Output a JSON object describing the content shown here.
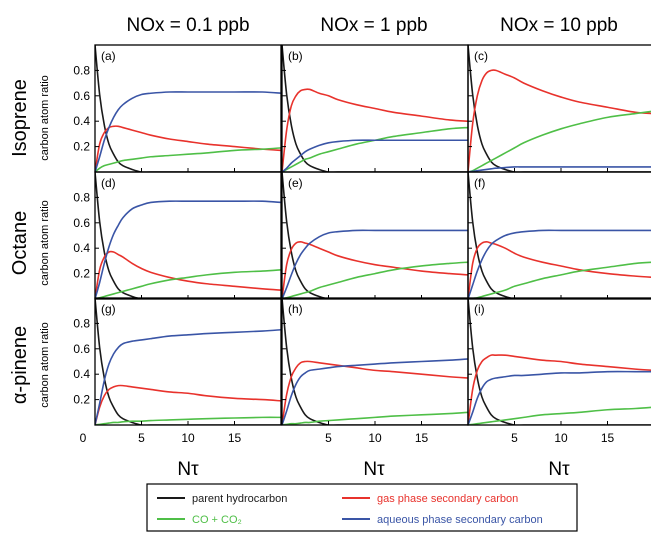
{
  "chart_data": {
    "type": "line",
    "column_titles": [
      "NOx = 0.1 ppb",
      "NOx = 1 ppb",
      "NOx = 10 ppb"
    ],
    "row_titles": [
      "Isoprene",
      "Octane",
      "α-pinene"
    ],
    "ylabel": "carbon atom ratio",
    "xlabel": "Nτ",
    "xlim": [
      0,
      20
    ],
    "ylim": [
      0,
      1
    ],
    "xticks": [
      "0",
      "5",
      "10",
      "15"
    ],
    "yticks": [
      "0.2",
      "0.4",
      "0.6",
      "0.8"
    ],
    "x": [
      0,
      0.5,
      1,
      1.5,
      2,
      2.5,
      3,
      4,
      5,
      6,
      8,
      10,
      12,
      15,
      18,
      20
    ],
    "series_styles": [
      {
        "name": "parent hydrocarbon",
        "color": "#1a1a1a"
      },
      {
        "name": "gas phase secondary carbon",
        "color": "#e8322c"
      },
      {
        "name": "CO + CO₂",
        "color": "#4fbf47"
      },
      {
        "name": "aqueous phase secondary carbon",
        "color": "#3a55a6"
      }
    ],
    "panels": [
      {
        "label": "(a)",
        "row": 0,
        "col": 0,
        "series": [
          [
            1.0,
            0.61,
            0.37,
            0.22,
            0.14,
            0.08,
            0.05,
            0.02,
            0.0,
            0.0,
            0.0,
            0.0,
            0.0,
            0.0,
            0.0,
            0.0
          ],
          [
            0.0,
            0.22,
            0.31,
            0.35,
            0.36,
            0.36,
            0.35,
            0.33,
            0.31,
            0.29,
            0.26,
            0.24,
            0.22,
            0.2,
            0.18,
            0.17
          ],
          [
            0.0,
            0.03,
            0.05,
            0.06,
            0.07,
            0.08,
            0.09,
            0.1,
            0.11,
            0.12,
            0.13,
            0.14,
            0.15,
            0.17,
            0.18,
            0.19
          ],
          [
            0.0,
            0.12,
            0.25,
            0.35,
            0.43,
            0.49,
            0.53,
            0.58,
            0.61,
            0.62,
            0.63,
            0.63,
            0.63,
            0.63,
            0.63,
            0.62
          ]
        ]
      },
      {
        "label": "(b)",
        "row": 0,
        "col": 1,
        "series": [
          [
            1.0,
            0.61,
            0.37,
            0.22,
            0.14,
            0.08,
            0.05,
            0.02,
            0.0,
            0.0,
            0.0,
            0.0,
            0.0,
            0.0,
            0.0,
            0.0
          ],
          [
            0.0,
            0.33,
            0.52,
            0.6,
            0.64,
            0.65,
            0.65,
            0.62,
            0.6,
            0.57,
            0.53,
            0.5,
            0.47,
            0.44,
            0.41,
            0.4
          ],
          [
            0.0,
            0.02,
            0.04,
            0.06,
            0.08,
            0.1,
            0.11,
            0.14,
            0.16,
            0.18,
            0.22,
            0.25,
            0.28,
            0.31,
            0.34,
            0.35
          ],
          [
            0.0,
            0.03,
            0.07,
            0.1,
            0.13,
            0.16,
            0.18,
            0.21,
            0.23,
            0.24,
            0.25,
            0.25,
            0.25,
            0.25,
            0.25,
            0.25
          ]
        ]
      },
      {
        "label": "(c)",
        "row": 0,
        "col": 2,
        "series": [
          [
            1.0,
            0.61,
            0.37,
            0.22,
            0.14,
            0.08,
            0.05,
            0.02,
            0.0,
            0.0,
            0.0,
            0.0,
            0.0,
            0.0,
            0.0,
            0.0
          ],
          [
            0.0,
            0.38,
            0.6,
            0.72,
            0.78,
            0.8,
            0.8,
            0.77,
            0.74,
            0.7,
            0.64,
            0.59,
            0.55,
            0.51,
            0.47,
            0.46
          ],
          [
            0.0,
            0.01,
            0.03,
            0.05,
            0.07,
            0.09,
            0.11,
            0.15,
            0.19,
            0.23,
            0.29,
            0.34,
            0.38,
            0.43,
            0.46,
            0.48
          ],
          [
            0.0,
            0.005,
            0.01,
            0.015,
            0.02,
            0.025,
            0.03,
            0.035,
            0.04,
            0.04,
            0.04,
            0.04,
            0.04,
            0.04,
            0.04,
            0.04
          ]
        ]
      },
      {
        "label": "(d)",
        "row": 1,
        "col": 0,
        "series": [
          [
            1.0,
            0.61,
            0.37,
            0.22,
            0.14,
            0.08,
            0.05,
            0.02,
            0.0,
            0.0,
            0.0,
            0.0,
            0.0,
            0.0,
            0.0,
            0.0
          ],
          [
            0.0,
            0.23,
            0.33,
            0.37,
            0.37,
            0.35,
            0.33,
            0.28,
            0.24,
            0.21,
            0.17,
            0.14,
            0.12,
            0.1,
            0.08,
            0.07
          ],
          [
            0.0,
            0.01,
            0.02,
            0.03,
            0.04,
            0.05,
            0.06,
            0.08,
            0.1,
            0.12,
            0.15,
            0.17,
            0.19,
            0.21,
            0.22,
            0.23
          ],
          [
            0.0,
            0.13,
            0.28,
            0.41,
            0.51,
            0.58,
            0.64,
            0.71,
            0.74,
            0.76,
            0.77,
            0.77,
            0.77,
            0.77,
            0.77,
            0.76
          ]
        ]
      },
      {
        "label": "(e)",
        "row": 1,
        "col": 1,
        "series": [
          [
            1.0,
            0.61,
            0.37,
            0.22,
            0.14,
            0.08,
            0.05,
            0.02,
            0.0,
            0.0,
            0.0,
            0.0,
            0.0,
            0.0,
            0.0,
            0.0
          ],
          [
            0.0,
            0.27,
            0.39,
            0.44,
            0.45,
            0.44,
            0.43,
            0.4,
            0.37,
            0.34,
            0.3,
            0.27,
            0.25,
            0.22,
            0.2,
            0.19
          ],
          [
            0.0,
            0.01,
            0.02,
            0.03,
            0.04,
            0.05,
            0.06,
            0.09,
            0.11,
            0.13,
            0.17,
            0.2,
            0.23,
            0.26,
            0.28,
            0.29
          ],
          [
            0.0,
            0.09,
            0.19,
            0.28,
            0.35,
            0.4,
            0.44,
            0.49,
            0.52,
            0.53,
            0.54,
            0.54,
            0.54,
            0.54,
            0.54,
            0.54
          ]
        ]
      },
      {
        "label": "(f)",
        "row": 1,
        "col": 2,
        "series": [
          [
            1.0,
            0.61,
            0.37,
            0.22,
            0.14,
            0.08,
            0.05,
            0.02,
            0.0,
            0.0,
            0.0,
            0.0,
            0.0,
            0.0,
            0.0,
            0.0
          ],
          [
            0.0,
            0.28,
            0.4,
            0.44,
            0.45,
            0.44,
            0.43,
            0.4,
            0.36,
            0.33,
            0.29,
            0.26,
            0.23,
            0.2,
            0.18,
            0.17
          ],
          [
            0.0,
            0.005,
            0.01,
            0.02,
            0.03,
            0.04,
            0.05,
            0.07,
            0.1,
            0.12,
            0.16,
            0.19,
            0.22,
            0.25,
            0.28,
            0.29
          ],
          [
            0.0,
            0.11,
            0.22,
            0.31,
            0.38,
            0.43,
            0.46,
            0.5,
            0.52,
            0.53,
            0.54,
            0.54,
            0.54,
            0.54,
            0.54,
            0.54
          ]
        ]
      },
      {
        "label": "(g)",
        "row": 2,
        "col": 0,
        "series": [
          [
            1.0,
            0.61,
            0.37,
            0.22,
            0.14,
            0.08,
            0.05,
            0.02,
            0.0,
            0.0,
            0.0,
            0.0,
            0.0,
            0.0,
            0.0,
            0.0
          ],
          [
            0.0,
            0.14,
            0.23,
            0.28,
            0.3,
            0.31,
            0.31,
            0.3,
            0.29,
            0.28,
            0.26,
            0.25,
            0.23,
            0.21,
            0.2,
            0.19
          ],
          [
            0.0,
            0.005,
            0.01,
            0.015,
            0.02,
            0.02,
            0.025,
            0.03,
            0.03,
            0.035,
            0.04,
            0.045,
            0.05,
            0.055,
            0.06,
            0.06
          ],
          [
            0.0,
            0.17,
            0.35,
            0.48,
            0.56,
            0.61,
            0.64,
            0.66,
            0.67,
            0.68,
            0.7,
            0.71,
            0.72,
            0.73,
            0.74,
            0.75
          ]
        ]
      },
      {
        "label": "(h)",
        "row": 2,
        "col": 1,
        "series": [
          [
            1.0,
            0.61,
            0.37,
            0.22,
            0.14,
            0.08,
            0.05,
            0.02,
            0.0,
            0.0,
            0.0,
            0.0,
            0.0,
            0.0,
            0.0,
            0.0
          ],
          [
            0.0,
            0.24,
            0.38,
            0.45,
            0.49,
            0.5,
            0.5,
            0.49,
            0.48,
            0.47,
            0.45,
            0.43,
            0.42,
            0.4,
            0.38,
            0.37
          ],
          [
            0.0,
            0.005,
            0.01,
            0.01,
            0.015,
            0.02,
            0.02,
            0.03,
            0.035,
            0.04,
            0.05,
            0.06,
            0.07,
            0.08,
            0.09,
            0.1
          ],
          [
            0.0,
            0.11,
            0.23,
            0.32,
            0.38,
            0.41,
            0.43,
            0.44,
            0.45,
            0.46,
            0.47,
            0.48,
            0.49,
            0.5,
            0.51,
            0.52
          ]
        ]
      },
      {
        "label": "(i)",
        "row": 2,
        "col": 2,
        "series": [
          [
            1.0,
            0.61,
            0.37,
            0.22,
            0.14,
            0.08,
            0.05,
            0.02,
            0.0,
            0.0,
            0.0,
            0.0,
            0.0,
            0.0,
            0.0,
            0.0
          ],
          [
            0.0,
            0.28,
            0.43,
            0.5,
            0.53,
            0.55,
            0.55,
            0.55,
            0.54,
            0.53,
            0.51,
            0.5,
            0.48,
            0.46,
            0.44,
            0.43
          ],
          [
            0.0,
            0.005,
            0.01,
            0.015,
            0.02,
            0.025,
            0.03,
            0.04,
            0.05,
            0.06,
            0.08,
            0.09,
            0.1,
            0.12,
            0.13,
            0.14
          ],
          [
            0.0,
            0.1,
            0.21,
            0.29,
            0.34,
            0.36,
            0.37,
            0.38,
            0.39,
            0.39,
            0.4,
            0.41,
            0.41,
            0.42,
            0.42,
            0.42
          ]
        ]
      }
    ],
    "legend": {
      "placement": "bottom",
      "items": [
        {
          "label": "parent hydrocarbon",
          "color": "#1a1a1a"
        },
        {
          "label": "gas phase secondary carbon",
          "color": "#e8322c"
        },
        {
          "label": "CO + CO₂",
          "color": "#4fbf47"
        },
        {
          "label": "aqueous phase secondary carbon",
          "color": "#3a55a6"
        }
      ]
    }
  }
}
